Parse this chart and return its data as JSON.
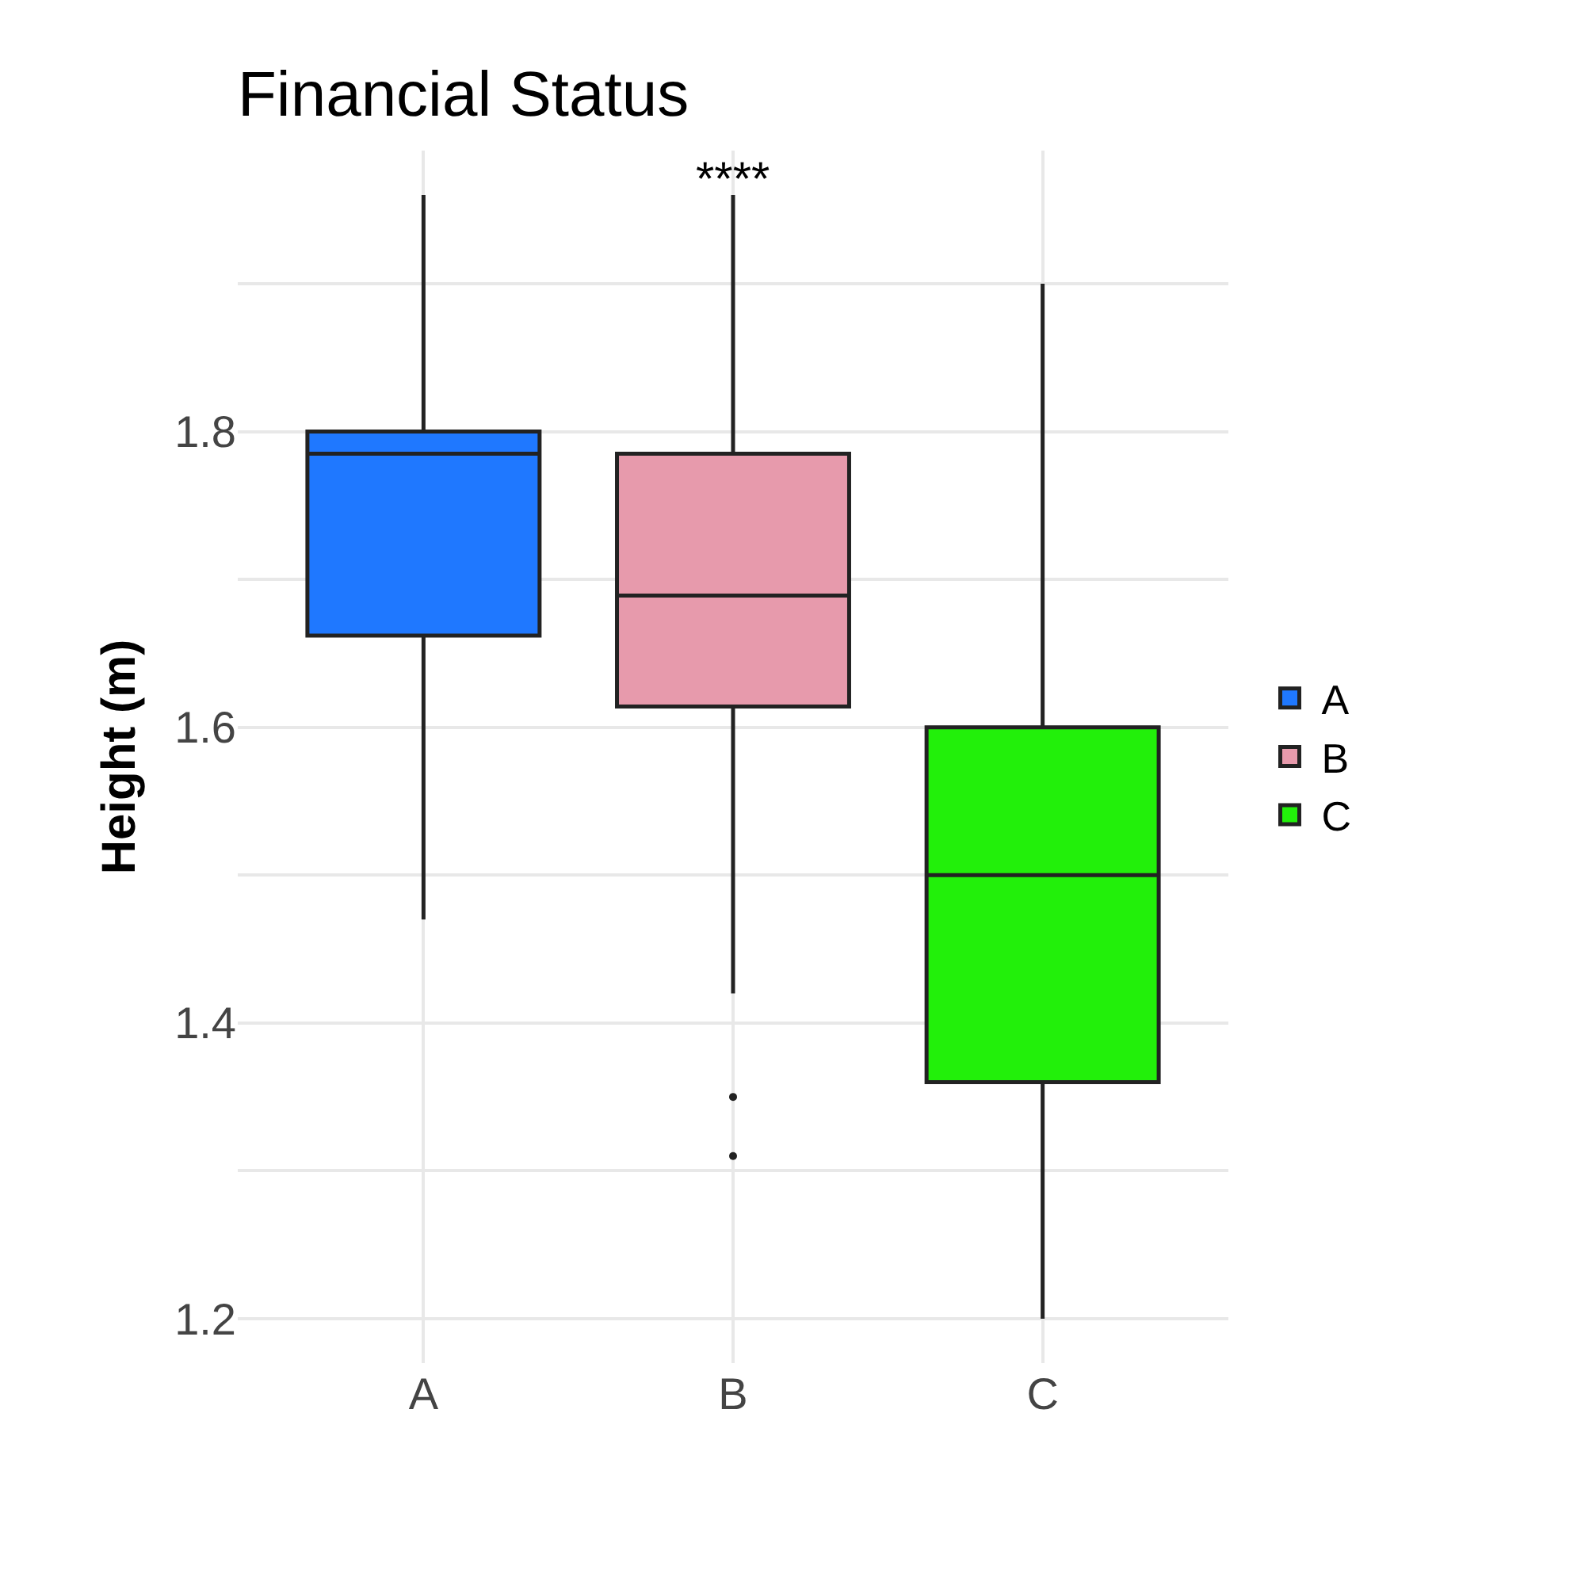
{
  "chart_data": {
    "type": "box",
    "title": "Financial Status",
    "ylabel": "Height (m)",
    "categories": [
      "A",
      "B",
      "C"
    ],
    "series": [
      {
        "name": "A",
        "color": "#1f78ff",
        "boxes": [
          {
            "low": 1.47,
            "q1": 1.662,
            "median": 1.785,
            "q3": 1.8,
            "high": 1.96
          },
          null,
          null
        ]
      },
      {
        "name": "B",
        "color": "#e79aac",
        "boxes": [
          null,
          {
            "low": 1.42,
            "q1": 1.614,
            "median": 1.689,
            "q3": 1.785,
            "high": 1.96,
            "outliers": [
              1.31,
              1.35
            ]
          },
          null
        ]
      },
      {
        "name": "C",
        "color": "#22f00a",
        "boxes": [
          null,
          null,
          {
            "low": 1.2,
            "q1": 1.36,
            "median": 1.5,
            "q3": 1.6,
            "high": 1.9
          }
        ]
      }
    ],
    "ylim": [
      1.17,
      1.99
    ],
    "yticks": [
      1.2,
      {
        "value": 1.3,
        "label": null
      },
      1.4,
      {
        "value": 1.5,
        "label": null
      },
      1.6,
      {
        "value": 1.7,
        "label": null
      },
      1.8,
      {
        "value": 1.9,
        "label": null
      }
    ],
    "annotations": [
      "****"
    ],
    "grid": true,
    "legend": "right"
  }
}
